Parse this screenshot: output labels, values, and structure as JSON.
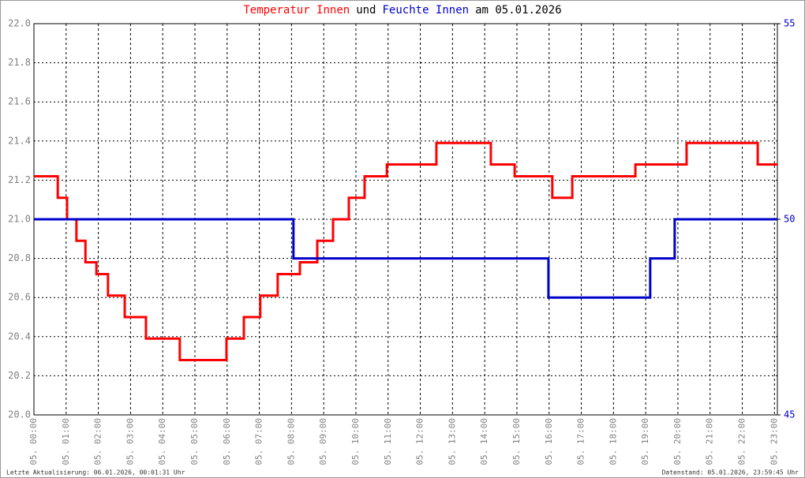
{
  "chart_data": {
    "type": "line",
    "title_connector": "und",
    "title_date": "am 05.01.2026",
    "footer_left": "Letzte Aktualisierung: 06.01.2026, 00:01:31 Uhr",
    "footer_right": "Datenstand: 05.01.2026, 23:59:45 Uhr",
    "grid": true,
    "xlim": [
      0,
      23.09
    ],
    "xticks": [
      {
        "value": 0,
        "label": "05. 00:00"
      },
      {
        "value": 1,
        "label": "05. 01:00"
      },
      {
        "value": 2,
        "label": "05. 02:00"
      },
      {
        "value": 3,
        "label": "05. 03:00"
      },
      {
        "value": 4,
        "label": "05. 04:00"
      },
      {
        "value": 5,
        "label": "05. 05:00"
      },
      {
        "value": 6,
        "label": "05. 06:00"
      },
      {
        "value": 7,
        "label": "05. 07:00"
      },
      {
        "value": 8,
        "label": "05. 08:00"
      },
      {
        "value": 9,
        "label": "05. 09:00"
      },
      {
        "value": 10,
        "label": "05. 10:00"
      },
      {
        "value": 11,
        "label": "05. 11:00"
      },
      {
        "value": 12,
        "label": "05. 12:00"
      },
      {
        "value": 13,
        "label": "05. 13:00"
      },
      {
        "value": 14,
        "label": "05. 14:00"
      },
      {
        "value": 15,
        "label": "05. 15:00"
      },
      {
        "value": 16,
        "label": "05. 16:00"
      },
      {
        "value": 17,
        "label": "05. 17:00"
      },
      {
        "value": 18,
        "label": "05. 18:00"
      },
      {
        "value": 19,
        "label": "05. 19:00"
      },
      {
        "value": 20,
        "label": "05. 20:00"
      },
      {
        "value": 21,
        "label": "05. 21:00"
      },
      {
        "value": 22,
        "label": "05. 22:00"
      },
      {
        "value": 23,
        "label": "05. 23:00"
      }
    ],
    "ylim": [
      20,
      22
    ],
    "yticks": [
      {
        "value": 20,
        "label": "20.0"
      },
      {
        "value": 20.2,
        "label": "20.2"
      },
      {
        "value": 20.4,
        "label": "20.4"
      },
      {
        "value": 20.6,
        "label": "20.6"
      },
      {
        "value": 20.8,
        "label": "20.8"
      },
      {
        "value": 21,
        "label": "21.0"
      },
      {
        "value": 21.2,
        "label": "21.2"
      },
      {
        "value": 21.4,
        "label": "21.4"
      },
      {
        "value": 21.6,
        "label": "21.6"
      },
      {
        "value": 21.8,
        "label": "21.8"
      },
      {
        "value": 22,
        "label": "22.0"
      }
    ],
    "y2lim": [
      45,
      55
    ],
    "y2ticks": [
      45,
      50,
      55
    ],
    "series": [
      {
        "name": "Temperatur Innen",
        "color": "#ff0000",
        "x": [
          0,
          0.74,
          0.74,
          1.03,
          1.03,
          1.32,
          1.32,
          1.6,
          1.6,
          1.94,
          1.94,
          2.3,
          2.3,
          2.82,
          2.82,
          3.48,
          3.48,
          4.53,
          4.53,
          5.98,
          5.98,
          6.52,
          6.52,
          7.03,
          7.03,
          7.57,
          7.57,
          8.26,
          8.26,
          8.8,
          8.8,
          9.29,
          9.29,
          9.78,
          9.78,
          10.27,
          10.27,
          10.96,
          10.96,
          12.5,
          12.5,
          14.19,
          14.19,
          14.93,
          14.93,
          16.1,
          16.1,
          16.72,
          16.72,
          18.68,
          18.68,
          20.27,
          20.27,
          22.48,
          22.48,
          23.09
        ],
        "values": [
          21.22,
          21.22,
          21.11,
          21.11,
          21.0,
          21.0,
          20.89,
          20.89,
          20.78,
          20.78,
          20.72,
          20.72,
          20.61,
          20.61,
          20.5,
          20.5,
          20.39,
          20.39,
          20.28,
          20.28,
          20.39,
          20.39,
          20.5,
          20.5,
          20.61,
          20.61,
          20.72,
          20.72,
          20.78,
          20.78,
          20.89,
          20.89,
          21.0,
          21.0,
          21.11,
          21.11,
          21.22,
          21.22,
          21.28,
          21.28,
          21.39,
          21.39,
          21.28,
          21.28,
          21.22,
          21.22,
          21.11,
          21.11,
          21.22,
          21.22,
          21.28,
          21.28,
          21.39,
          21.39,
          21.28,
          21.28
        ]
      },
      {
        "name": "Feuchte Innen",
        "color": "#0000cc",
        "axis": "y2",
        "x": [
          0,
          8.06,
          8.06,
          15.98,
          15.98,
          19.14,
          19.14,
          19.9,
          19.9,
          23.09
        ],
        "values": [
          50,
          50,
          49,
          49,
          48,
          48,
          49,
          49,
          50,
          50
        ]
      }
    ]
  }
}
